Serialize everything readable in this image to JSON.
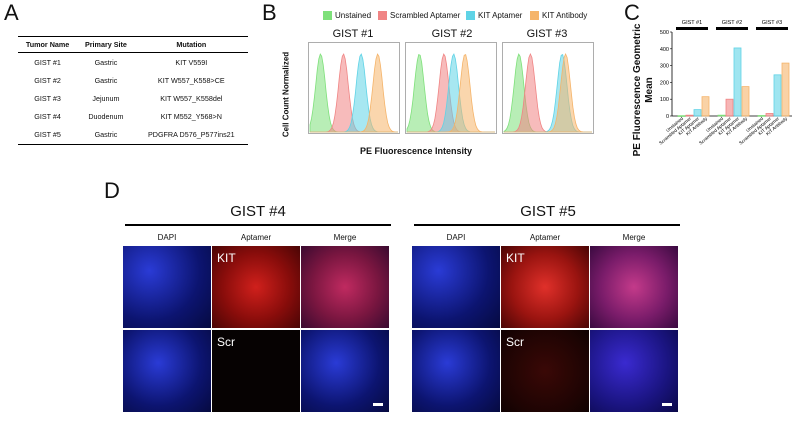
{
  "panels": {
    "a": "A",
    "b": "B",
    "c": "C",
    "d": "D"
  },
  "table": {
    "headers": [
      "Tumor Name",
      "Primary Site",
      "Mutation"
    ],
    "rows": [
      [
        "GIST #1",
        "Gastric",
        "KIT V559I"
      ],
      [
        "GIST #2",
        "Gastric",
        "KIT W557_K558>CE"
      ],
      [
        "GIST #3",
        "Jejunum",
        "KIT W557_K558del"
      ],
      [
        "GIST #4",
        "Duodenum",
        "KIT M552_Y568>N"
      ],
      [
        "GIST #5",
        "Gastric",
        "PDGFRA D576_P577ins21"
      ]
    ]
  },
  "legend": [
    {
      "label": "Unstained",
      "color": "#7ee07a"
    },
    {
      "label": "Scrambled Aptamer",
      "color": "#f08484"
    },
    {
      "label": "KIT Aptamer",
      "color": "#5fd3e6"
    },
    {
      "label": "KIT Antibody",
      "color": "#f5b46a"
    }
  ],
  "histograms": {
    "ylabel": "Cell Count Normalized",
    "xlabel": "PE Fluorescence Intensity",
    "titles": [
      "GIST #1",
      "GIST #2",
      "GIST #3"
    ],
    "peaks": [
      [
        0.12,
        0.38,
        0.58,
        0.77
      ],
      [
        0.14,
        0.42,
        0.53,
        0.66
      ],
      [
        0.17,
        0.3,
        0.66,
        0.7
      ]
    ]
  },
  "chart_data": {
    "type": "bar",
    "ylabel": "PE Fluorescence Geometric Mean",
    "ylim": [
      0,
      500
    ],
    "yticks": [
      0,
      100,
      200,
      300,
      400,
      500
    ],
    "categories": [
      "Unstained",
      "Scrambled Aptamer",
      "KIT Aptamer",
      "KIT Antibody"
    ],
    "colors": [
      "#7ee07a",
      "#f08484",
      "#5fd3e6",
      "#f5b46a"
    ],
    "groups": [
      {
        "name": "GIST #1",
        "values": [
          2,
          5,
          38,
          115
        ]
      },
      {
        "name": "GIST #2",
        "values": [
          5,
          100,
          405,
          175
        ]
      },
      {
        "name": "GIST #3",
        "values": [
          3,
          15,
          245,
          315
        ]
      }
    ]
  },
  "panel_d": {
    "gists": [
      "GIST #4",
      "GIST #5"
    ],
    "col_heads": [
      "DAPI",
      "Aptamer",
      "Merge"
    ],
    "row_labels": [
      "KIT",
      "Scr"
    ]
  }
}
